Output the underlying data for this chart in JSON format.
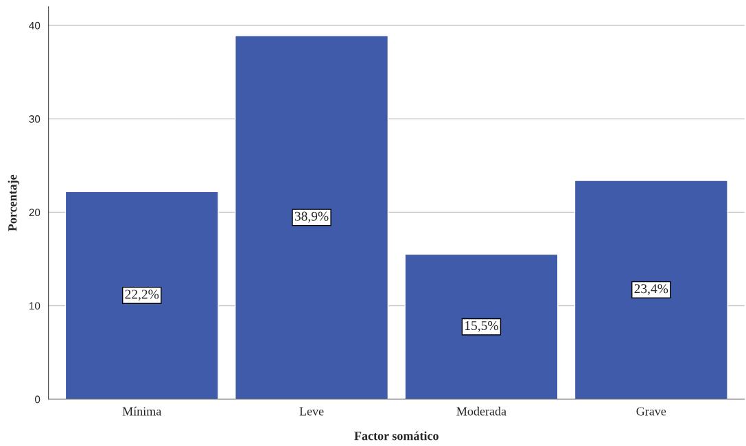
{
  "chart_data": {
    "type": "bar",
    "xlabel": "Factor somático",
    "ylabel": "Porcentaje",
    "categories": [
      "Mínima",
      "Leve",
      "Moderada",
      "Grave"
    ],
    "values": [
      22.2,
      38.9,
      15.5,
      23.4
    ],
    "value_labels": [
      "22,2%",
      "38,9%",
      "15,5%",
      "23,4%"
    ],
    "color": "#3f5ba9",
    "ylim": [
      0,
      42
    ],
    "yticks": [
      0,
      10,
      20,
      30,
      40
    ],
    "grid": "y"
  }
}
